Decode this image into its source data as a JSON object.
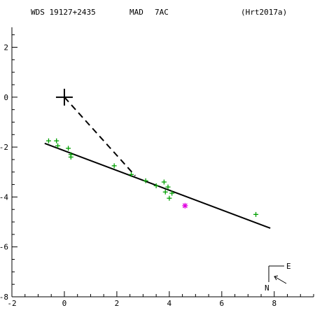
{
  "header": {
    "wds_id": "WDS 19127+2435",
    "method": "MAD",
    "components": "7AC",
    "reference": "(Hrt2017a)"
  },
  "compass": {
    "east_label": "E",
    "north_label": "N"
  },
  "colors": {
    "axes": "#000000",
    "observations": "#00a000",
    "highlight": "#e000e0"
  },
  "chart_data": {
    "type": "scatter",
    "title": "",
    "xlabel": "",
    "ylabel": "",
    "xlim": [
      -2.0,
      9.5
    ],
    "ylim": [
      -8.0,
      2.8
    ],
    "x_ticks": [
      -2,
      0,
      2,
      4,
      6,
      8
    ],
    "x_tick_labels": [
      "-2",
      "0",
      "2",
      "4",
      "6",
      "8"
    ],
    "y_ticks": [
      2,
      0,
      -2,
      -4,
      -6,
      -8
    ],
    "y_tick_labels": [
      "2",
      "0",
      "-2",
      "-4",
      "-6",
      "-8"
    ],
    "primary": {
      "x": 0,
      "y": 0,
      "marker": "large-plus"
    },
    "observations": [
      {
        "x": -0.6,
        "y": -1.75
      },
      {
        "x": -0.3,
        "y": -1.75
      },
      {
        "x": -0.25,
        "y": -1.95
      },
      {
        "x": 0.15,
        "y": -2.05
      },
      {
        "x": 0.25,
        "y": -2.3
      },
      {
        "x": 0.25,
        "y": -2.4
      },
      {
        "x": 1.9,
        "y": -2.75
      },
      {
        "x": 2.55,
        "y": -3.1
      },
      {
        "x": 3.1,
        "y": -3.35
      },
      {
        "x": 3.5,
        "y": -3.55
      },
      {
        "x": 3.8,
        "y": -3.4
      },
      {
        "x": 3.95,
        "y": -3.6
      },
      {
        "x": 3.85,
        "y": -3.8
      },
      {
        "x": 4.1,
        "y": -3.85
      },
      {
        "x": 4.0,
        "y": -4.05
      },
      {
        "x": 7.3,
        "y": -4.7
      }
    ],
    "highlight_point": {
      "x": 4.6,
      "y": -4.35,
      "marker": "asterisk"
    },
    "fit_line": {
      "x": [
        -0.75,
        7.85
      ],
      "y": [
        -1.85,
        -5.25
      ]
    },
    "dashed_line": {
      "x": [
        0.0,
        2.7
      ],
      "y": [
        0.0,
        -3.15
      ]
    }
  }
}
